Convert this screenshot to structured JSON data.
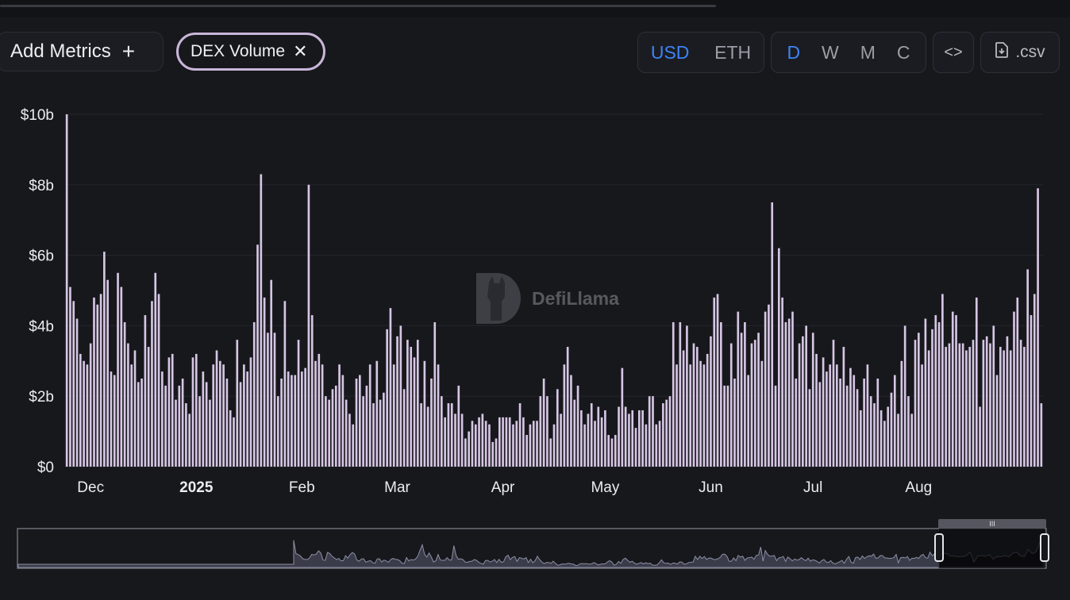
{
  "toolbar": {
    "add_metrics_label": "Add Metrics",
    "add_icon": "+",
    "metric_chip_label": "DEX Volume",
    "remove_icon": "✕",
    "currency_options": [
      "USD",
      "ETH"
    ],
    "currency_selected": "USD",
    "period_options": [
      "D",
      "W",
      "M",
      "C"
    ],
    "period_selected": "D",
    "embed_icon": "<>",
    "csv_label": ".csv"
  },
  "watermark": {
    "text": "DefiLlama"
  },
  "colors": {
    "bar": "#d6c6e4",
    "accent": "#3d83f5",
    "chip_border": "#c9b6d9",
    "background": "#17181c"
  },
  "chart_data": {
    "type": "bar",
    "title": "",
    "xlabel": "",
    "ylabel": "",
    "unit": "USD",
    "ylim": [
      0,
      10
    ],
    "y_ticks": [
      "$0",
      "$2b",
      "$4b",
      "$6b",
      "$8b",
      "$10b"
    ],
    "x_ticks": [
      "Dec",
      "2025",
      "Feb",
      "Mar",
      "Apr",
      "May",
      "Jun",
      "Jul",
      "Aug"
    ],
    "x_tick_dates": [
      "2024-12-01",
      "2025-01-01",
      "2025-02-01",
      "2025-03-01",
      "2025-04-01",
      "2025-05-01",
      "2025-06-01",
      "2025-07-01",
      "2025-08-01"
    ],
    "start_date": "2024-11-24",
    "series": [
      {
        "values_billions": [
          10.0,
          5.1,
          4.7,
          4.2,
          3.2,
          3.0,
          2.9,
          3.5,
          4.8,
          4.6,
          4.9,
          6.1,
          5.3,
          2.7,
          2.6,
          5.5,
          5.1,
          4.1,
          3.5,
          2.9,
          3.3,
          2.4,
          2.5,
          4.3,
          3.4,
          4.7,
          5.5,
          4.9,
          2.7,
          2.3,
          3.1,
          3.2,
          1.9,
          2.3,
          2.5,
          1.8,
          1.5,
          3.1,
          3.2,
          2.0,
          2.7,
          2.4,
          1.9,
          2.9,
          3.3,
          3.0,
          2.9,
          2.5,
          1.6,
          1.4,
          3.6,
          2.4,
          2.9,
          2.7,
          3.1,
          4.1,
          6.3,
          8.3,
          4.8,
          3.8,
          5.3,
          3.8,
          2.0,
          2.5,
          4.7,
          2.7,
          2.6,
          2.6,
          3.6,
          2.7,
          2.8,
          8.0,
          4.3,
          3.0,
          3.2,
          2.9,
          2.0,
          1.9,
          2.2,
          2.3,
          2.9,
          2.6,
          1.9,
          1.5,
          1.2,
          2.5,
          2.6,
          2.0,
          2.3,
          2.9,
          1.8,
          3.0,
          1.9,
          2.1,
          3.9,
          4.5,
          2.9,
          3.7,
          4.0,
          2.2,
          3.6,
          3.4,
          3.1,
          3.6,
          1.8,
          3.0,
          1.7,
          2.5,
          4.1,
          2.9,
          2.0,
          1.4,
          1.8,
          1.8,
          1.5,
          2.3,
          1.5,
          0.8,
          1.0,
          1.3,
          1.2,
          1.4,
          1.5,
          1.3,
          1.2,
          0.7,
          0.8,
          1.4,
          1.4,
          1.4,
          1.4,
          1.2,
          1.3,
          1.8,
          1.4,
          0.9,
          1.2,
          1.3,
          1.3,
          2.0,
          2.5,
          2.0,
          0.8,
          1.2,
          2.2,
          1.5,
          2.9,
          3.4,
          2.6,
          1.9,
          2.3,
          1.6,
          1.2,
          1.5,
          1.8,
          1.3,
          1.7,
          1.4,
          1.6,
          0.9,
          0.8,
          0.9,
          1.7,
          2.8,
          1.7,
          1.5,
          1.6,
          1.1,
          1.6,
          1.6,
          1.2,
          2.0,
          2.0,
          1.2,
          1.3,
          1.8,
          1.9,
          2.0,
          4.1,
          2.9,
          4.1,
          3.3,
          4.0,
          2.9,
          3.5,
          3.4,
          3.0,
          2.9,
          3.2,
          3.7,
          4.8,
          4.9,
          4.1,
          2.3,
          2.3,
          3.5,
          2.5,
          4.4,
          3.8,
          4.1,
          2.6,
          3.5,
          3.6,
          3.8,
          3.0,
          4.4,
          4.6,
          7.5,
          2.3,
          6.2,
          4.8,
          4.1,
          4.2,
          4.4,
          2.5,
          3.5,
          3.7,
          4.0,
          2.2,
          3.8,
          3.2,
          2.4,
          3.1,
          2.7,
          2.9,
          3.6,
          2.9,
          2.5,
          3.4,
          2.3,
          2.8,
          2.6,
          2.2,
          1.6,
          2.5,
          2.9,
          2.0,
          1.8,
          2.5,
          1.6,
          1.3,
          1.7,
          2.1,
          2.6,
          1.5,
          3.0,
          4.0,
          2.0,
          1.5,
          3.6,
          3.8,
          2.9,
          4.2,
          3.3,
          3.9,
          4.3,
          4.1,
          4.9,
          3.4,
          3.5,
          4.4,
          4.3,
          3.5,
          3.5,
          3.3,
          3.4,
          3.6,
          4.8,
          1.7,
          3.6,
          3.7,
          3.5,
          4.0,
          2.6,
          3.4,
          3.3,
          3.7,
          3.3,
          4.4,
          4.8,
          3.6,
          3.4,
          5.6,
          4.3,
          4.9,
          7.9,
          1.8
        ]
      }
    ],
    "grid": true,
    "legend": "none"
  },
  "brush": {
    "selection": "last ~4 weeks",
    "handle_icon": "III"
  }
}
